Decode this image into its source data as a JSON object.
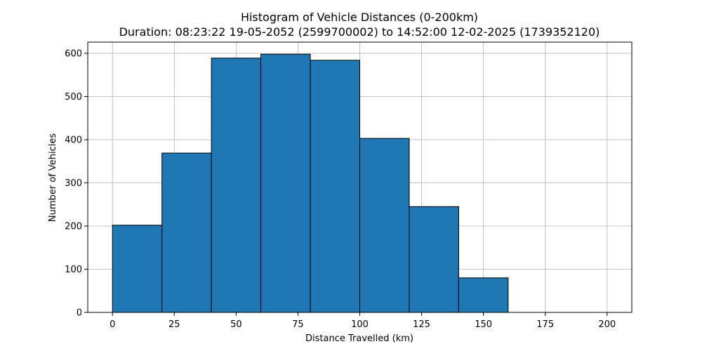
{
  "chart_data": {
    "type": "bar",
    "title": "Histogram of Vehicle Distances (0-200km)",
    "subtitle": "Duration: 08:23:22 19-05-2052 (2599700002) to 14:52:00 12-02-2025 (1739352120)",
    "xlabel": "Distance Travelled (km)",
    "ylabel": "Number of Vehicles",
    "xlim": [
      -10,
      210
    ],
    "ylim": [
      0,
      626
    ],
    "x_ticks": [
      0,
      25,
      50,
      75,
      100,
      125,
      150,
      175,
      200
    ],
    "y_ticks": [
      0,
      100,
      200,
      300,
      400,
      500,
      600
    ],
    "grid": true,
    "bins": [
      {
        "start": 0,
        "end": 20,
        "count": 202
      },
      {
        "start": 20,
        "end": 40,
        "count": 369
      },
      {
        "start": 40,
        "end": 60,
        "count": 589
      },
      {
        "start": 60,
        "end": 80,
        "count": 598
      },
      {
        "start": 80,
        "end": 100,
        "count": 584
      },
      {
        "start": 100,
        "end": 120,
        "count": 403
      },
      {
        "start": 120,
        "end": 140,
        "count": 245
      },
      {
        "start": 140,
        "end": 160,
        "count": 80
      },
      {
        "start": 160,
        "end": 180,
        "count": 0
      },
      {
        "start": 180,
        "end": 200,
        "count": 0
      }
    ],
    "colors": {
      "bar_fill": "#1f77b4",
      "bar_edge": "#000000",
      "grid": "#b0b0b0"
    }
  }
}
